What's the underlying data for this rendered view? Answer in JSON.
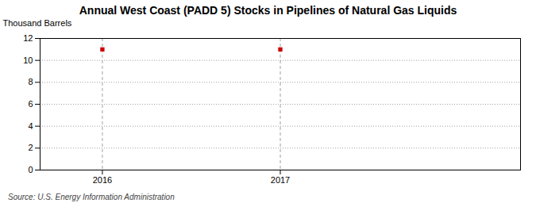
{
  "chart_data": {
    "type": "scatter",
    "title": "Annual West Coast (PADD 5) Stocks in Pipelines of Natural Gas Liquids",
    "ylabel": "Thousand Barrels",
    "source": "Source: U.S. Energy Information Administration",
    "x": [
      2016,
      2017
    ],
    "values": [
      11,
      11
    ],
    "xlim": [
      2015.65,
      2018.35
    ],
    "xticks": [
      2016,
      2017
    ],
    "ylim": [
      0,
      12
    ],
    "yticks": [
      0,
      2,
      4,
      6,
      8,
      10,
      12
    ],
    "color": "#cc0000",
    "marker": "square",
    "grid": true
  }
}
